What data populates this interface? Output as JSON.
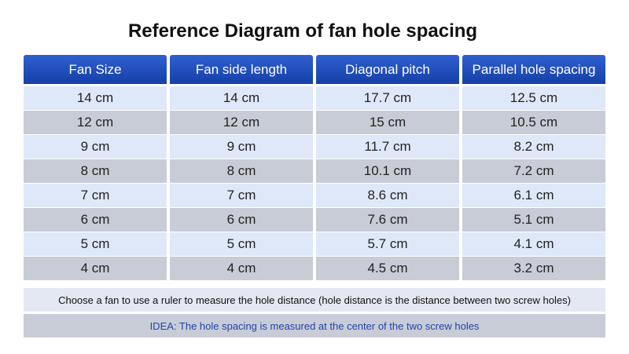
{
  "header": {
    "title": "Reference Diagram of fan hole spacing"
  },
  "table": {
    "columns": [
      "Fan Size",
      "Fan side length",
      "Diagonal pitch",
      "Parallel hole spacing"
    ],
    "rows": [
      [
        "14 cm",
        "14 cm",
        "17.7 cm",
        "12.5 cm"
      ],
      [
        "12 cm",
        "12 cm",
        "15 cm",
        "10.5 cm"
      ],
      [
        "9 cm",
        "9 cm",
        "11.7 cm",
        "8.2 cm"
      ],
      [
        "8 cm",
        "8 cm",
        "10.1 cm",
        "7.2 cm"
      ],
      [
        "7 cm",
        "7 cm",
        "8.6 cm",
        "6.1 cm"
      ],
      [
        "6 cm",
        "6 cm",
        "7.6 cm",
        "5.1 cm"
      ],
      [
        "5 cm",
        "5 cm",
        "5.7 cm",
        "4.1 cm"
      ],
      [
        "4 cm",
        "4 cm",
        "4.5 cm",
        "3.2 cm"
      ]
    ]
  },
  "notes": {
    "instruction": "Choose a fan to use a ruler to measure the hole distance (hole distance is the distance between two screw holes)",
    "idea": "IDEA: The hole spacing is measured at the center of the two screw holes"
  }
}
